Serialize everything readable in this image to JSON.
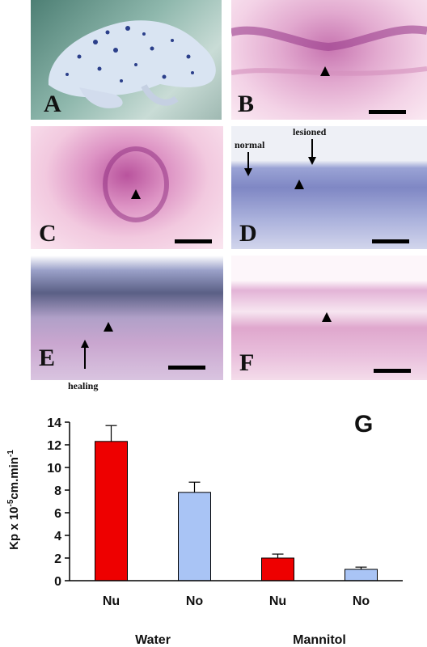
{
  "panels": [
    {
      "id": "A",
      "label": "A"
    },
    {
      "id": "B",
      "label": "B"
    },
    {
      "id": "C",
      "label": "C"
    },
    {
      "id": "D",
      "label": "D",
      "annotations": [
        "normal",
        "lesioned"
      ]
    },
    {
      "id": "E",
      "label": "E",
      "annotations": [
        "healing"
      ]
    },
    {
      "id": "F",
      "label": "F"
    }
  ],
  "chart_label": "G",
  "chart_data": {
    "type": "bar",
    "categories": [
      "Nu",
      "No",
      "Nu",
      "No"
    ],
    "groups": [
      "Water",
      "Mannitol"
    ],
    "values": [
      12.3,
      7.8,
      2.0,
      1.0
    ],
    "errors": [
      1.4,
      0.9,
      0.35,
      0.2
    ],
    "bar_colors": [
      "#ee0000",
      "#a9c4f5",
      "#ee0000",
      "#a9c4f5"
    ],
    "ylabel": "Kp x 10",
    "ylabel_sup": "-5",
    "ylabel_tail": "cm.min",
    "ylabel_sup2": "-1",
    "ylim": [
      0,
      14
    ],
    "yticks": [
      0,
      2,
      4,
      6,
      8,
      10,
      12,
      14
    ]
  }
}
